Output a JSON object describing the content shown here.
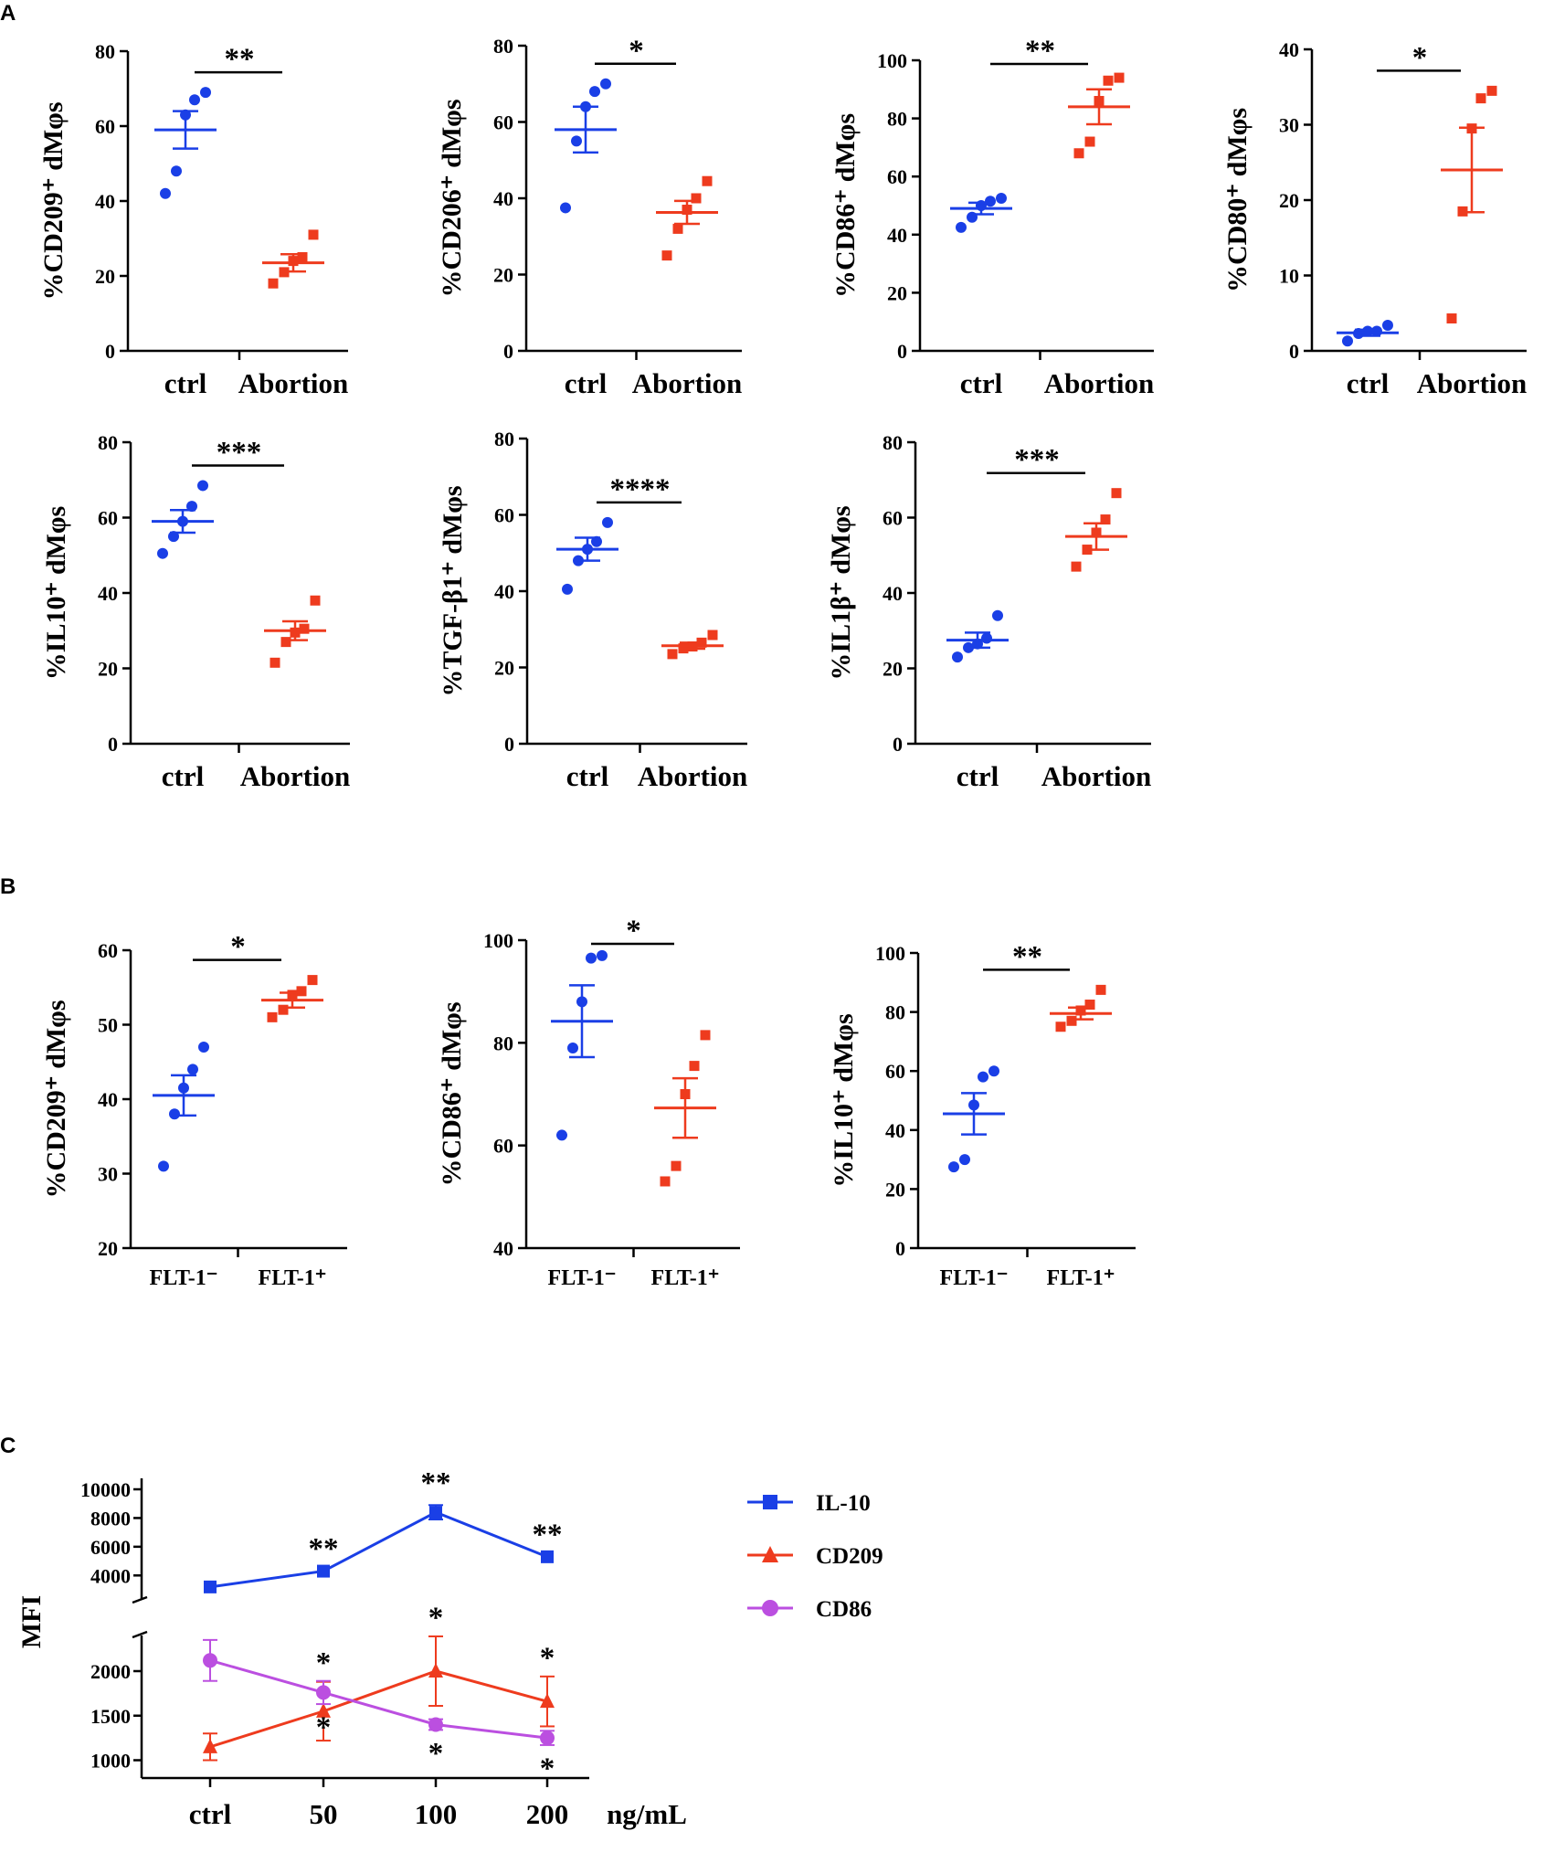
{
  "colors": {
    "ctrl": "#1a3fe6",
    "abortion": "#ee3b1e",
    "il10": "#1a3fe6",
    "cd209": "#ee3b1e",
    "cd86": "#bb4fe0"
  },
  "panel_labels": [
    "A",
    "B",
    "C"
  ],
  "chart_data": [
    {
      "id": "A1",
      "type": "scatter",
      "title": "",
      "ylabel": "%CD209⁺ dMφs",
      "ylim": [
        0,
        80
      ],
      "yticks": [
        0,
        20,
        40,
        60,
        80
      ],
      "categories": [
        "ctrl",
        "Abortion"
      ],
      "series": [
        {
          "name": "ctrl",
          "points": [
            42,
            48,
            63,
            67,
            69
          ],
          "mean": 59,
          "sem": 5
        },
        {
          "name": "Abortion",
          "points": [
            18,
            21,
            24,
            25,
            31
          ],
          "mean": 23.5,
          "sem": 2.3
        }
      ],
      "significance": "**"
    },
    {
      "id": "A2",
      "type": "scatter",
      "title": "",
      "ylabel": "%CD206⁺ dMφs",
      "ylim": [
        0,
        80
      ],
      "yticks": [
        0,
        20,
        40,
        60,
        80
      ],
      "categories": [
        "ctrl",
        "Abortion"
      ],
      "series": [
        {
          "name": "ctrl",
          "points": [
            37.5,
            55,
            64,
            68,
            70
          ],
          "mean": 58,
          "sem": 6
        },
        {
          "name": "Abortion",
          "points": [
            25,
            32,
            37,
            40,
            44.5
          ],
          "mean": 36.3,
          "sem": 3
        }
      ],
      "significance": "*"
    },
    {
      "id": "A3",
      "type": "scatter",
      "title": "",
      "ylabel": "%CD86⁺ dMφs",
      "ylim": [
        0,
        100
      ],
      "yticks": [
        0,
        20,
        40,
        60,
        80,
        100
      ],
      "categories": [
        "ctrl",
        "Abortion"
      ],
      "series": [
        {
          "name": "ctrl",
          "points": [
            42.5,
            46,
            50,
            51.5,
            52.5
          ],
          "mean": 49,
          "sem": 2
        },
        {
          "name": "Abortion",
          "points": [
            68,
            72,
            86,
            93,
            94
          ],
          "mean": 84,
          "sem": 6
        }
      ],
      "significance": "**"
    },
    {
      "id": "A4",
      "type": "scatter",
      "title": "",
      "ylabel": "%CD80⁺ dMφs",
      "ylim": [
        0,
        40
      ],
      "yticks": [
        0,
        10,
        20,
        30,
        40
      ],
      "categories": [
        "ctrl",
        "Abortion"
      ],
      "series": [
        {
          "name": "ctrl",
          "points": [
            1.3,
            2.3,
            2.6,
            2.6,
            3.4
          ],
          "mean": 2.4,
          "sem": 0.4
        },
        {
          "name": "Abortion",
          "points": [
            4.3,
            18.5,
            29.5,
            33.5,
            34.5
          ],
          "mean": 24,
          "sem": 5.6
        }
      ],
      "significance": "*"
    },
    {
      "id": "A5",
      "type": "scatter",
      "title": "",
      "ylabel": "%IL10⁺ dMφs",
      "ylim": [
        0,
        80
      ],
      "yticks": [
        0,
        20,
        40,
        60,
        80
      ],
      "categories": [
        "ctrl",
        "Abortion"
      ],
      "series": [
        {
          "name": "ctrl",
          "points": [
            50.5,
            55,
            59,
            63,
            68.5
          ],
          "mean": 59,
          "sem": 3
        },
        {
          "name": "Abortion",
          "points": [
            21.5,
            27,
            29.5,
            30.5,
            38
          ],
          "mean": 30,
          "sem": 2.5
        }
      ],
      "significance": "***"
    },
    {
      "id": "A6",
      "type": "scatter",
      "title": "",
      "ylabel": "%TGF-β1⁺ dMφs",
      "ylim": [
        0,
        80
      ],
      "yticks": [
        0,
        20,
        40,
        60,
        80
      ],
      "categories": [
        "ctrl",
        "Abortion"
      ],
      "series": [
        {
          "name": "ctrl",
          "points": [
            40.5,
            48,
            51,
            53,
            58
          ],
          "mean": 51,
          "sem": 3
        },
        {
          "name": "Abortion",
          "points": [
            23.5,
            25,
            25.5,
            26.5,
            28.5
          ],
          "mean": 25.7,
          "sem": 0.8
        }
      ],
      "significance": "****"
    },
    {
      "id": "A7",
      "type": "scatter",
      "title": "",
      "ylabel": "%IL1β⁺ dMφs",
      "ylim": [
        0,
        80
      ],
      "yticks": [
        0,
        20,
        40,
        60,
        80
      ],
      "categories": [
        "ctrl",
        "Abortion"
      ],
      "series": [
        {
          "name": "ctrl",
          "points": [
            23,
            25.5,
            26.5,
            28,
            34
          ],
          "mean": 27.5,
          "sem": 2
        },
        {
          "name": "Abortion",
          "points": [
            47,
            51.5,
            56,
            59.5,
            66.5
          ],
          "mean": 55,
          "sem": 3.5
        }
      ],
      "significance": "***"
    },
    {
      "id": "B1",
      "type": "scatter",
      "title": "",
      "ylabel": "%CD209⁺ dMφs",
      "ylim": [
        20,
        60
      ],
      "yticks": [
        20,
        30,
        40,
        50,
        60
      ],
      "categories": [
        "FLT-1⁻",
        "FLT-1⁺"
      ],
      "series": [
        {
          "name": "FLT-1⁻",
          "points": [
            31,
            38,
            41.5,
            44,
            47
          ],
          "mean": 40.5,
          "sem": 2.7
        },
        {
          "name": "FLT-1⁺",
          "points": [
            51,
            52,
            54,
            54.5,
            56
          ],
          "mean": 53.3,
          "sem": 1
        }
      ],
      "significance": "*"
    },
    {
      "id": "B2",
      "type": "scatter",
      "title": "",
      "ylabel": "%CD86⁺ dMφs",
      "ylim": [
        40,
        100
      ],
      "yticks": [
        40,
        60,
        80,
        100
      ],
      "categories": [
        "FLT-1⁻",
        "FLT-1⁺"
      ],
      "series": [
        {
          "name": "FLT-1⁻",
          "points": [
            62,
            79,
            88,
            96.5,
            97
          ],
          "mean": 84.2,
          "sem": 7
        },
        {
          "name": "FLT-1⁺",
          "points": [
            53,
            56,
            70,
            75.5,
            81.5
          ],
          "mean": 67.3,
          "sem": 5.8
        }
      ],
      "significance": "*"
    },
    {
      "id": "B3",
      "type": "scatter",
      "title": "",
      "ylabel": "%IL10⁺ dMφs",
      "ylim": [
        0,
        100
      ],
      "yticks": [
        0,
        20,
        40,
        60,
        80,
        100
      ],
      "categories": [
        "FLT-1⁻",
        "FLT-1⁺"
      ],
      "series": [
        {
          "name": "FLT-1⁻",
          "points": [
            27.5,
            30,
            48.5,
            58,
            60
          ],
          "mean": 45.5,
          "sem": 7
        },
        {
          "name": "FLT-1⁺",
          "points": [
            75,
            77,
            80.5,
            82.5,
            87.5
          ],
          "mean": 79.5,
          "sem": 2
        }
      ],
      "significance": "**"
    },
    {
      "id": "C",
      "type": "line",
      "title": "",
      "ylabel": "MFI",
      "xlabel": "ng/mL",
      "categories": [
        "ctrl",
        "50",
        "100",
        "200"
      ],
      "upper_yticks": [
        4000,
        6000,
        8000,
        10000
      ],
      "upper_ylim": [
        3000,
        10000
      ],
      "lower_yticks": [
        1000,
        1500,
        2000
      ],
      "lower_ylim": [
        800,
        2400
      ],
      "legend": [
        "IL-10",
        "CD209",
        "CD86"
      ],
      "legend_position": "right",
      "series": [
        {
          "name": "IL-10",
          "marker": "square",
          "values": [
            3200,
            4300,
            8400,
            5300
          ],
          "errors": [
            0,
            0,
            500,
            0
          ],
          "stars": [
            "",
            "**",
            "**",
            "**"
          ]
        },
        {
          "name": "CD209",
          "marker": "triangle",
          "values": [
            1150,
            1550,
            2000,
            1660
          ],
          "errors": [
            150,
            330,
            390,
            280
          ],
          "stars": [
            "",
            "*",
            "*",
            "*"
          ]
        },
        {
          "name": "CD86",
          "marker": "circle",
          "values": [
            2120,
            1760,
            1400,
            1250
          ],
          "errors": [
            230,
            130,
            60,
            80
          ],
          "stars": [
            "",
            "*",
            "*",
            "*"
          ]
        }
      ]
    }
  ]
}
